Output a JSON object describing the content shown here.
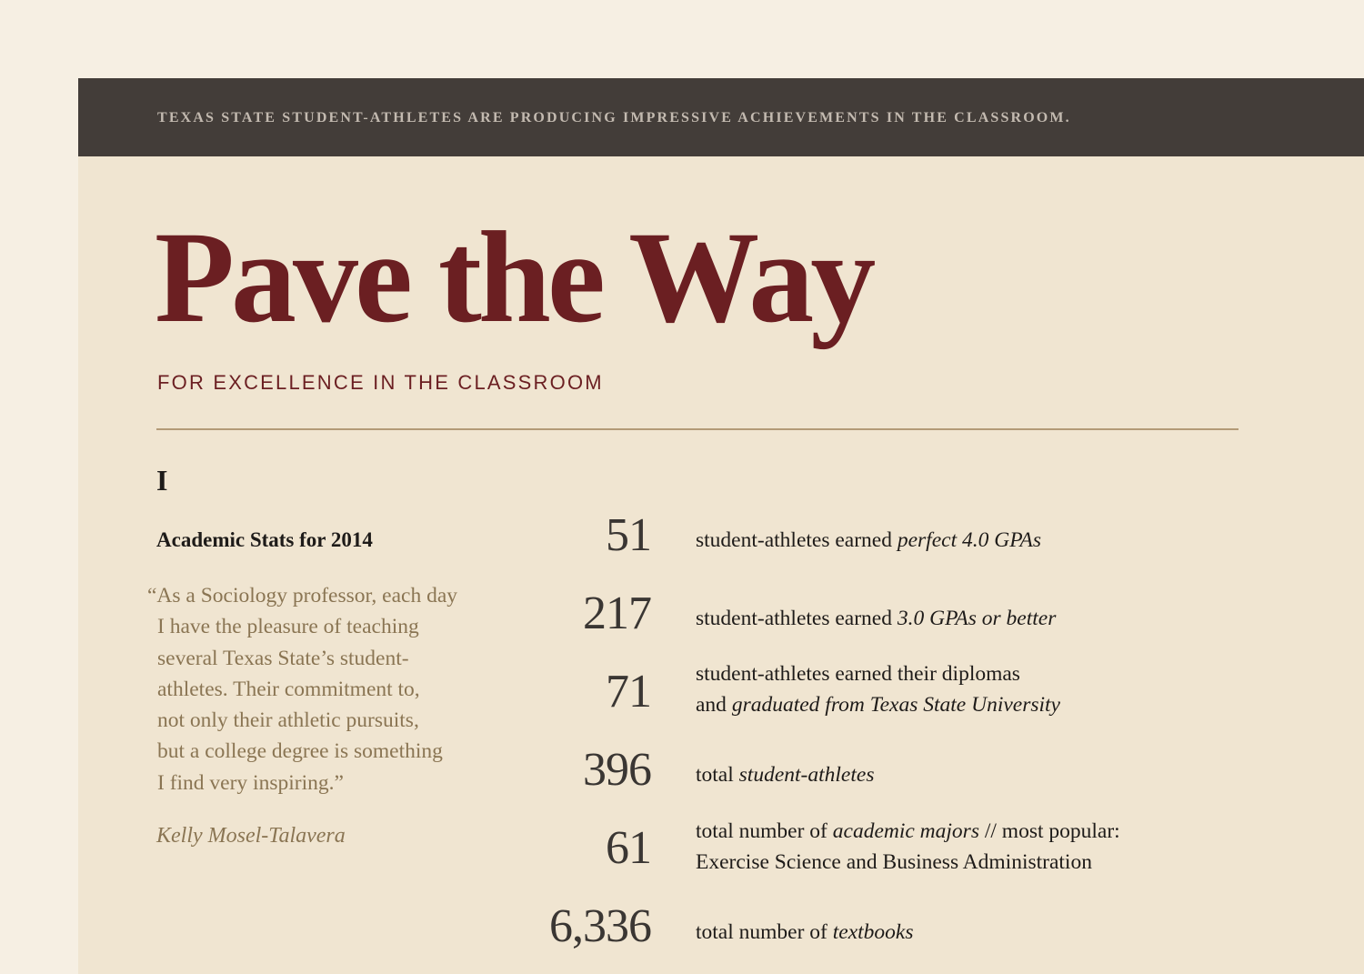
{
  "banner": {
    "text": "TEXAS STATE STUDENT-ATHLETES ARE PRODUCING IMPRESSIVE ACHIEVEMENTS IN THE CLASSROOM."
  },
  "header": {
    "title": "Pave the Way",
    "subtitle": "FOR EXCELLENCE IN THE CLASSROOM"
  },
  "section": {
    "numeral": "I",
    "heading": "Academic Stats for 2014",
    "quote_lines": [
      "“As a Sociology professor, each day",
      "I have the pleasure of teaching",
      "several Texas State’s student-",
      "athletes. Their commitment to,",
      "not only their athletic pursuits,",
      "but a college degree is something",
      "I find very inspiring.”"
    ],
    "attribution": "Kelly Mosel-Talavera"
  },
  "stats": [
    {
      "number": "51",
      "lines": [
        {
          "plain": "student-athletes earned ",
          "italic": "perfect 4.0 GPAs",
          "after": ""
        }
      ]
    },
    {
      "number": "217",
      "lines": [
        {
          "plain": "student-athletes earned ",
          "italic": "3.0 GPAs or better",
          "after": ""
        }
      ]
    },
    {
      "number": "71",
      "lines": [
        {
          "plain": "student-athletes earned their diplomas",
          "italic": "",
          "after": ""
        },
        {
          "plain": "and ",
          "italic": "graduated from Texas State University",
          "after": ""
        }
      ]
    },
    {
      "number": "396",
      "lines": [
        {
          "plain": "total ",
          "italic": "student-athletes",
          "after": ""
        }
      ]
    },
    {
      "number": "61",
      "lines": [
        {
          "plain": "total number of ",
          "italic": "academic majors",
          "after": " // most popular:"
        },
        {
          "plain": "Exercise Science and Business Administration",
          "italic": "",
          "after": ""
        }
      ]
    },
    {
      "number": "6,336",
      "lines": [
        {
          "plain": "total number of ",
          "italic": "textbooks",
          "after": ""
        }
      ]
    }
  ]
}
